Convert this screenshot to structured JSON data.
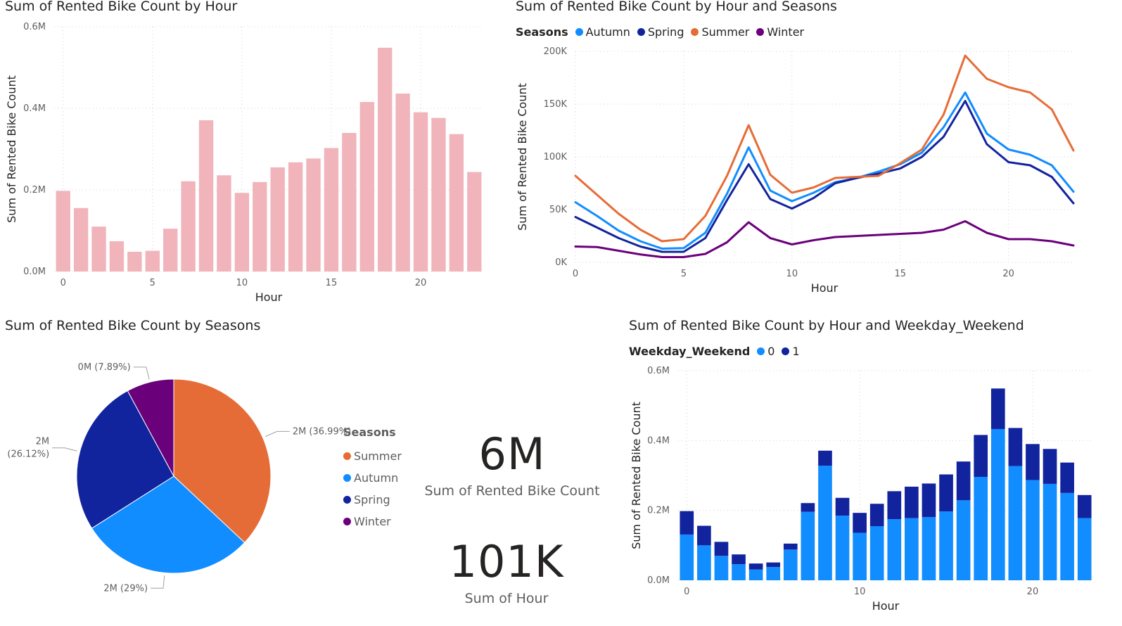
{
  "visual_titles": {
    "bar_by_hour": "Sum of Rented Bike Count by Hour",
    "line_by_hour_season": "Sum of Rented Bike Count by Hour and Seasons",
    "pie_by_season": "Sum of Rented Bike Count by Seasons",
    "stacked_by_hour_weekend": "Sum of Rented Bike Count by Hour and Weekday_Weekend"
  },
  "cards": [
    {
      "value": "6M",
      "label": "Sum of Rented Bike Count"
    },
    {
      "value": "101K",
      "label": "Sum of Hour"
    }
  ],
  "colors": {
    "bar": "#f0b4ba",
    "Autumn": "#118dff",
    "Spring": "#12239e",
    "Summer": "#e66c37",
    "Winter": "#6b007b",
    "weekday0": "#118dff",
    "weekday1": "#12239e"
  },
  "chart_data": [
    {
      "id": "bar_by_hour",
      "type": "bar",
      "title": "Sum of Rented Bike Count by Hour",
      "xlabel": "Hour",
      "ylabel": "Sum of Rented Bike Count",
      "x": [
        0,
        1,
        2,
        3,
        4,
        5,
        6,
        7,
        8,
        9,
        10,
        11,
        12,
        13,
        14,
        15,
        16,
        17,
        18,
        19,
        20,
        21,
        22,
        23
      ],
      "values": [
        197633,
        155557,
        110095,
        74216,
        48396,
        50765,
        104961,
        221192,
        370731,
        235784,
        192655,
        219311,
        255296,
        267635,
        276971,
        302653,
        339677,
        415556,
        548568,
        436229,
        390172,
        376479,
        336821,
        243792
      ],
      "ylim": [
        0,
        600000
      ],
      "yticks": [
        "0.0M",
        "0.2M",
        "0.4M",
        "0.6M"
      ],
      "xticks": [
        "0",
        "5",
        "10",
        "15",
        "20"
      ],
      "grid": true
    },
    {
      "id": "line_by_hour_season",
      "type": "line",
      "title": "Sum of Rented Bike Count by Hour and Seasons",
      "xlabel": "Hour",
      "ylabel": "Sum of Rented Bike Count",
      "legend_title": "Seasons",
      "legend_position": "top-left",
      "x": [
        0,
        1,
        2,
        3,
        4,
        5,
        6,
        7,
        8,
        9,
        10,
        11,
        12,
        13,
        14,
        15,
        16,
        17,
        18,
        19,
        20,
        21,
        22,
        23
      ],
      "series": [
        {
          "name": "Autumn",
          "values": [
            57000,
            44000,
            30000,
            20000,
            13000,
            13500,
            28000,
            65000,
            109000,
            68000,
            58000,
            66000,
            76000,
            80000,
            86000,
            93000,
            104000,
            128000,
            161000,
            122000,
            107000,
            102000,
            92000,
            67000
          ]
        },
        {
          "name": "Spring",
          "values": [
            43000,
            33000,
            23000,
            15000,
            10000,
            10000,
            23000,
            59000,
            93000,
            60000,
            51000,
            61000,
            75000,
            80000,
            84000,
            89000,
            100000,
            119000,
            153000,
            112000,
            95000,
            92000,
            81000,
            56000
          ]
        },
        {
          "name": "Summer",
          "values": [
            82000,
            64000,
            46000,
            31000,
            20000,
            22000,
            44000,
            82000,
            130000,
            83000,
            66000,
            71000,
            80000,
            81000,
            82000,
            94000,
            107000,
            140000,
            196000,
            174000,
            166000,
            161000,
            145000,
            106000
          ]
        },
        {
          "name": "Winter",
          "values": [
            15000,
            14500,
            11000,
            7500,
            5000,
            5000,
            8000,
            19000,
            38000,
            23000,
            17000,
            21000,
            24000,
            25000,
            26000,
            27000,
            28000,
            31000,
            39000,
            28000,
            22000,
            22000,
            20000,
            16000
          ]
        }
      ],
      "ylim": [
        0,
        200000
      ],
      "yticks": [
        "0K",
        "50K",
        "100K",
        "150K",
        "200K"
      ],
      "xticks": [
        "0",
        "5",
        "10",
        "15",
        "20"
      ],
      "grid": true
    },
    {
      "id": "pie_by_season",
      "type": "pie",
      "title": "Sum of Rented Bike Count by Seasons",
      "legend_title": "Seasons",
      "legend_position": "right",
      "slices": [
        {
          "name": "Summer",
          "percent": 36.99,
          "label": "2M (36.99%)"
        },
        {
          "name": "Autumn",
          "percent": 29.0,
          "label": "2M (29%)"
        },
        {
          "name": "Spring",
          "percent": 26.12,
          "label_lines": [
            "2M",
            "(26.12%)"
          ]
        },
        {
          "name": "Winter",
          "percent": 7.89,
          "label": "0M (7.89%)"
        }
      ]
    },
    {
      "id": "stacked_by_hour_weekend",
      "type": "bar",
      "stacked": true,
      "title": "Sum of Rented Bike Count by Hour and Weekday_Weekend",
      "xlabel": "Hour",
      "ylabel": "Sum of Rented Bike Count",
      "legend_title": "Weekday_Weekend",
      "legend_position": "top-left",
      "x": [
        0,
        1,
        2,
        3,
        4,
        5,
        6,
        7,
        8,
        9,
        10,
        11,
        12,
        13,
        14,
        15,
        16,
        17,
        18,
        19,
        20,
        21,
        22,
        23
      ],
      "series": [
        {
          "name": "0",
          "values": [
            131000,
            100000,
            70000,
            46000,
            31000,
            38000,
            88000,
            196000,
            328000,
            185000,
            136000,
            155000,
            175000,
            178000,
            181000,
            197000,
            229000,
            296000,
            433000,
            327000,
            287000,
            276000,
            250000,
            178000
          ]
        },
        {
          "name": "1",
          "values": [
            67000,
            56000,
            40000,
            28000,
            17000,
            13000,
            17000,
            25000,
            43000,
            51000,
            57000,
            64000,
            80000,
            90000,
            96000,
            106000,
            111000,
            120000,
            116000,
            109000,
            103000,
            100000,
            87000,
            66000
          ]
        }
      ],
      "ylim": [
        0,
        600000
      ],
      "yticks": [
        "0.0M",
        "0.2M",
        "0.4M",
        "0.6M"
      ],
      "xticks": [
        "0",
        "10",
        "20"
      ],
      "grid": true
    }
  ]
}
